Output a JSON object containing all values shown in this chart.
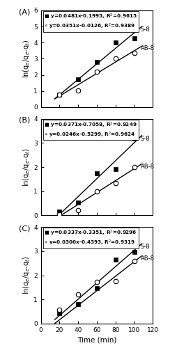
{
  "panels": [
    {
      "label": "A",
      "eq_s8_bold": "y=0.0481x-0.1995, R$^2$=0.9615",
      "eq_ab8_bold": "y=0.0351x-0.0126, R$^2$=0.9389",
      "slope_s8": 0.0481,
      "intercept_s8": -0.1995,
      "slope_ab8": 0.0351,
      "intercept_ab8": -0.0126,
      "x_s8": [
        20,
        40,
        60,
        80,
        100
      ],
      "y_s8": [
        0.76,
        1.73,
        2.79,
        4.02,
        4.27
      ],
      "x_ab8": [
        20,
        40,
        60,
        80,
        100
      ],
      "y_ab8": [
        0.76,
        1.04,
        2.19,
        3.02,
        3.37
      ],
      "ylim": [
        0,
        6
      ],
      "yticks": [
        0,
        1,
        2,
        3,
        4,
        5,
        6
      ],
      "ylabel": "ln(q$_e$/q$_e$-q$_t$)"
    },
    {
      "label": "B",
      "eq_s8_bold": "y=0.0371x-0.7058, R$^2$=0.9249",
      "eq_ab8_bold": "y=0.0246x-0.5299, R$^2$=0.9624",
      "slope_s8": 0.0371,
      "intercept_s8": -0.7058,
      "slope_ab8": 0.0246,
      "intercept_ab8": -0.5299,
      "x_s8": [
        20,
        40,
        60,
        80,
        100
      ],
      "y_s8": [
        0.17,
        0.54,
        1.75,
        1.9,
        3.17
      ],
      "x_ab8": [
        20,
        40,
        60,
        80,
        100
      ],
      "y_ab8": [
        0.05,
        0.22,
        1.0,
        1.34,
        2.01
      ],
      "ylim": [
        0,
        4
      ],
      "yticks": [
        0,
        1,
        2,
        3,
        4
      ],
      "ylabel": "ln(q$_e$/q$_e$-q$_t$)"
    },
    {
      "label": "C",
      "eq_s8_bold": "y=0.0337x-0.3351, R$^2$=0.9296",
      "eq_ab8_bold": "y=0.0300x-0.4393, R$^2$=0.9319",
      "slope_s8": 0.0337,
      "intercept_s8": -0.3351,
      "slope_ab8": 0.03,
      "intercept_ab8": -0.4393,
      "x_s8": [
        20,
        40,
        60,
        80,
        100
      ],
      "y_s8": [
        0.44,
        0.8,
        1.47,
        2.65,
        2.97
      ],
      "x_ab8": [
        20,
        40,
        60,
        80,
        100
      ],
      "y_ab8": [
        0.58,
        1.2,
        1.74,
        1.75,
        2.59
      ],
      "ylim": [
        0,
        4
      ],
      "yticks": [
        0,
        1,
        2,
        3,
        4
      ],
      "ylabel": "ln(q$_e$/q$_e$-q$_t$)"
    }
  ],
  "xlabel": "Time (min)",
  "xlim": [
    0,
    120
  ],
  "xticks": [
    0,
    20,
    40,
    60,
    80,
    100,
    120
  ],
  "background_color": "#ffffff",
  "label_s8": "S-8",
  "label_ab8": "AB-8"
}
